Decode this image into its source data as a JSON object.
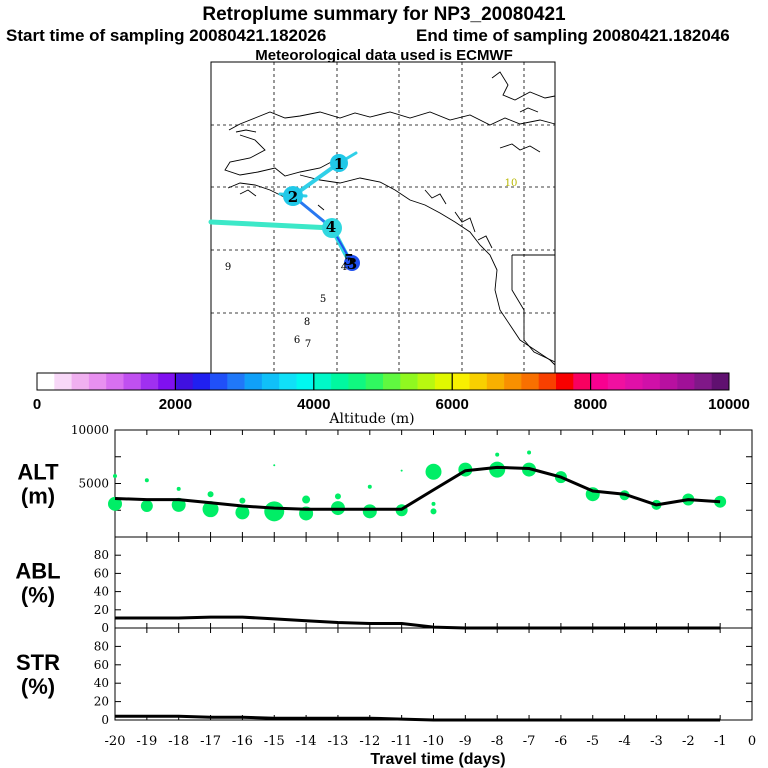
{
  "header": {
    "title": "Retroplume summary for NP3_20080421",
    "start_label": "Start time of sampling 20080421.182026",
    "end_label": "End time of sampling 20080421.182046",
    "met_label": "Meteorological data used is ECMWF"
  },
  "colors": {
    "palette": [
      "#ffffff",
      "#f8d8f8",
      "#f0b0f0",
      "#e890f0",
      "#d870f0",
      "#c050f0",
      "#a030f0",
      "#8010f0",
      "#4010e0",
      "#2020f0",
      "#2050f8",
      "#2078f8",
      "#10a0f8",
      "#10c0f8",
      "#10e0f8",
      "#00f8f0",
      "#00f8c8",
      "#00f8a0",
      "#10f880",
      "#30f860",
      "#60f840",
      "#90f820",
      "#b8f810",
      "#e0f800",
      "#f8f000",
      "#f8d000",
      "#f8b000",
      "#f89000",
      "#f87000",
      "#f84000",
      "#f80000",
      "#f80060",
      "#f80090",
      "#f010a0",
      "#e010a8",
      "#d010a8",
      "#b810a0",
      "#a01098",
      "#801888",
      "#601070"
    ],
    "alt_marker": "#00ee66",
    "map_track": "#20c8e8"
  },
  "map": {
    "track_labels": [
      "1",
      "2",
      "3",
      "4",
      "5"
    ],
    "scatter_labels": [
      "4",
      "5",
      "6",
      "7",
      "8",
      "9",
      "10"
    ]
  },
  "colorbar": {
    "ticks": [
      "0",
      "2000",
      "4000",
      "6000",
      "8000",
      "10000"
    ],
    "label": "Altitude (m)"
  },
  "chart_data": [
    {
      "type": "line",
      "panel": "ALT",
      "ylabel": [
        "ALT",
        "(m)"
      ],
      "ylim": [
        0,
        10000
      ],
      "yticks": [
        "2500",
        "5000",
        "7500",
        "10000"
      ],
      "ytick_labels": [
        "5000",
        "10000"
      ],
      "x": [
        -20,
        -19,
        -18,
        -17,
        -16,
        -15,
        -14,
        -13,
        -12,
        -11,
        -10,
        -9,
        -8,
        -7,
        -6,
        -5,
        -4,
        -3,
        -2,
        -1
      ],
      "values": [
        3600,
        3500,
        3500,
        3200,
        2900,
        2700,
        2600,
        2600,
        2600,
        2600,
        4400,
        6200,
        6500,
        6400,
        5600,
        4300,
        4000,
        3000,
        3500,
        3300
      ],
      "markers": [
        {
          "x": -20,
          "y": 3100,
          "r": 7
        },
        {
          "x": -20,
          "y": 5700,
          "r": 2
        },
        {
          "x": -19,
          "y": 2900,
          "r": 6
        },
        {
          "x": -19,
          "y": 5300,
          "r": 2
        },
        {
          "x": -18,
          "y": 3000,
          "r": 7
        },
        {
          "x": -18,
          "y": 4500,
          "r": 2
        },
        {
          "x": -17,
          "y": 2600,
          "r": 8
        },
        {
          "x": -17,
          "y": 4000,
          "r": 3
        },
        {
          "x": -16,
          "y": 2300,
          "r": 7
        },
        {
          "x": -16,
          "y": 3400,
          "r": 3
        },
        {
          "x": -15,
          "y": 2400,
          "r": 10
        },
        {
          "x": -15,
          "y": 6700,
          "r": 1
        },
        {
          "x": -14,
          "y": 2200,
          "r": 7
        },
        {
          "x": -14,
          "y": 3500,
          "r": 4
        },
        {
          "x": -13,
          "y": 2700,
          "r": 7
        },
        {
          "x": -13,
          "y": 3800,
          "r": 3
        },
        {
          "x": -12,
          "y": 2400,
          "r": 7
        },
        {
          "x": -12,
          "y": 4700,
          "r": 2
        },
        {
          "x": -11,
          "y": 2500,
          "r": 6
        },
        {
          "x": -11,
          "y": 6200,
          "r": 1
        },
        {
          "x": -10,
          "y": 6100,
          "r": 8
        },
        {
          "x": -10,
          "y": 2400,
          "r": 3
        },
        {
          "x": -10,
          "y": 3100,
          "r": 2
        },
        {
          "x": -9,
          "y": 6300,
          "r": 7
        },
        {
          "x": -8,
          "y": 6300,
          "r": 8
        },
        {
          "x": -8,
          "y": 7700,
          "r": 2
        },
        {
          "x": -7,
          "y": 6300,
          "r": 7
        },
        {
          "x": -7,
          "y": 7900,
          "r": 2
        },
        {
          "x": -6,
          "y": 5600,
          "r": 6
        },
        {
          "x": -5,
          "y": 4000,
          "r": 7
        },
        {
          "x": -4,
          "y": 3900,
          "r": 5
        },
        {
          "x": -3,
          "y": 3000,
          "r": 5
        },
        {
          "x": -2,
          "y": 3500,
          "r": 6
        },
        {
          "x": -1,
          "y": 3300,
          "r": 6
        }
      ]
    },
    {
      "type": "line",
      "panel": "ABL",
      "ylabel": [
        "ABL",
        "(%)"
      ],
      "ylim": [
        0,
        100
      ],
      "yticks": [
        "0",
        "20",
        "40",
        "60",
        "80"
      ],
      "x": [
        -20,
        -19,
        -18,
        -17,
        -16,
        -15,
        -14,
        -13,
        -12,
        -11,
        -10,
        -9,
        -8,
        -7,
        -6,
        -5,
        -4,
        -3,
        -2,
        -1
      ],
      "values": [
        11,
        11,
        11,
        12,
        12,
        10,
        8,
        6,
        5,
        5,
        1,
        0,
        0,
        0,
        0,
        0,
        0,
        0,
        0,
        0
      ]
    },
    {
      "type": "line",
      "panel": "STR",
      "ylabel": [
        "STR",
        "(%)"
      ],
      "ylim": [
        0,
        100
      ],
      "yticks": [
        "0",
        "20",
        "40",
        "60",
        "80"
      ],
      "x": [
        -20,
        -19,
        -18,
        -17,
        -16,
        -15,
        -14,
        -13,
        -12,
        -11,
        -10,
        -9,
        -8,
        -7,
        -6,
        -5,
        -4,
        -3,
        -2,
        -1
      ],
      "values": [
        4,
        4,
        4,
        3,
        3,
        2,
        2,
        2,
        2,
        1,
        0,
        0,
        0,
        0,
        0,
        0,
        0,
        0,
        0,
        0
      ]
    }
  ],
  "xaxis": {
    "ticks": [
      "-20",
      "-19",
      "-18",
      "-17",
      "-16",
      "-15",
      "-14",
      "-13",
      "-12",
      "-11",
      "-10",
      "-9",
      "-8",
      "-7",
      "-6",
      "-5",
      "-4",
      "-3",
      "-2",
      "-1",
      "0"
    ],
    "xlim": [
      -20,
      0
    ],
    "label": "Travel time (days)"
  }
}
